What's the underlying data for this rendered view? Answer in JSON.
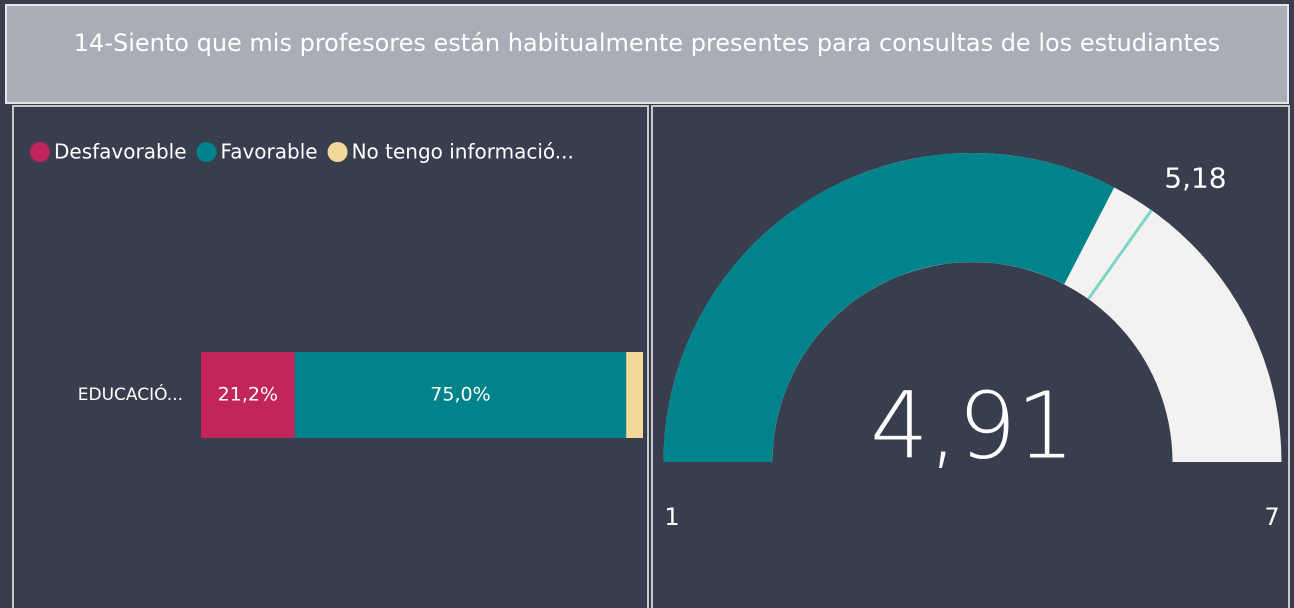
{
  "header": {
    "title": "14-Siento que mis profesores están habitualmente presentes para consultas de los estudiantes"
  },
  "chart_data": [
    {
      "type": "bar",
      "orientation": "horizontal",
      "stacked": true,
      "categories": [
        "EDUCACIÓ..."
      ],
      "series": [
        {
          "name": "Desfavorable",
          "color": "#c2255c",
          "values": [
            21.2
          ],
          "value_labels": [
            "21,2%"
          ]
        },
        {
          "name": "Favorable",
          "color": "#00838a",
          "values": [
            75.0
          ],
          "value_labels": [
            "75,0%"
          ]
        },
        {
          "name": "No tengo informació...",
          "color": "#f5d99a",
          "values": [
            3.8
          ]
        }
      ],
      "xlim": [
        0,
        100
      ],
      "legend": "top-left"
    },
    {
      "type": "gauge",
      "min": 1,
      "max": 7,
      "value": 4.91,
      "value_label": "4,91",
      "target": 5.18,
      "target_label": "5,18",
      "color": "#00838a",
      "track_color": "#f3f2f0",
      "target_color": "#7fd3c8"
    }
  ]
}
